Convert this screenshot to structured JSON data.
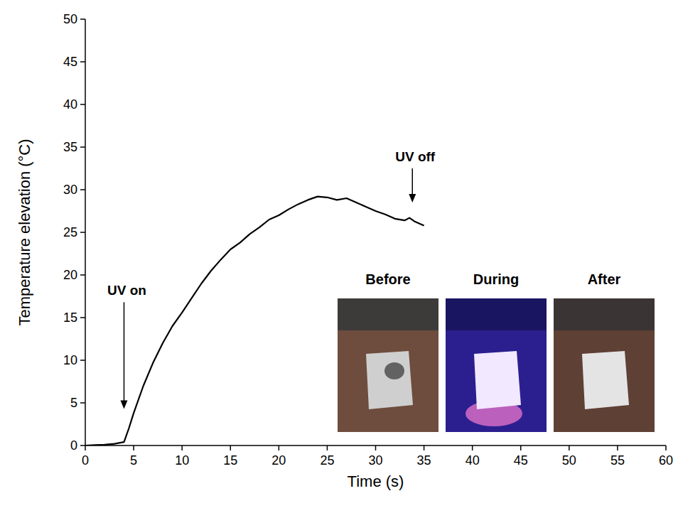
{
  "chart_data": {
    "type": "line",
    "x_label": "Time (s)",
    "y_label": "Temperature elevation (°C)",
    "color": "#000000",
    "xlim": [
      0,
      60
    ],
    "xticks": [
      0,
      5,
      10,
      15,
      20,
      25,
      30,
      35,
      40,
      45,
      50,
      55,
      60
    ],
    "ylim": [
      0,
      50
    ],
    "yticks": [
      0,
      5,
      10,
      15,
      20,
      25,
      30,
      35,
      40,
      45,
      50
    ],
    "grid": false,
    "x": [
      0,
      1,
      2,
      3,
      3.5,
      4,
      4.5,
      5,
      6,
      7,
      8,
      9,
      10,
      11,
      12,
      13,
      14,
      15,
      16,
      17,
      18,
      19,
      20,
      21,
      22,
      23,
      24,
      25,
      26,
      27,
      28,
      29,
      30,
      31,
      32,
      33,
      33.5,
      34,
      35
    ],
    "values": [
      0,
      0.05,
      0.1,
      0.2,
      0.3,
      0.4,
      2,
      3.8,
      7,
      9.7,
      12,
      14,
      15.6,
      17.3,
      19,
      20.5,
      21.8,
      23,
      23.8,
      24.8,
      25.6,
      26.5,
      27,
      27.7,
      28.3,
      28.8,
      29.2,
      29.1,
      28.8,
      29,
      28.5,
      28,
      27.5,
      27.1,
      26.6,
      26.4,
      26.7,
      26.3,
      25.8
    ],
    "annotations": [
      {
        "text": "UV on",
        "x": 4,
        "y": 4.3
      },
      {
        "text": "UV off",
        "x": 33.8,
        "y": 28.5
      }
    ],
    "insets": [
      "Before",
      "During",
      "After"
    ]
  }
}
